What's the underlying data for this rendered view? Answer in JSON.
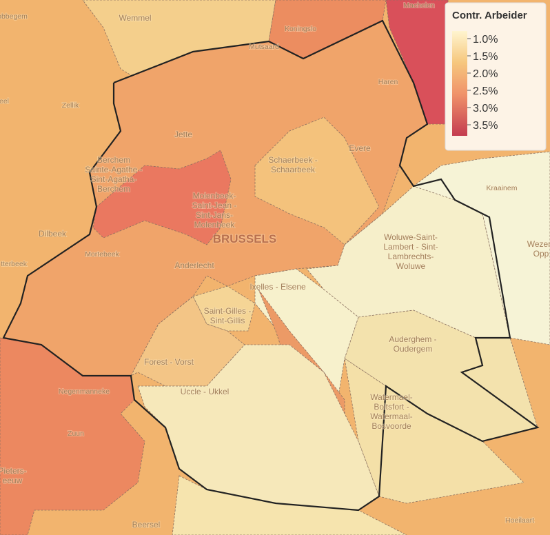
{
  "legend": {
    "title": "Contr. Arbeider",
    "ticks": [
      {
        "value": 1.0,
        "label": "1.0%"
      },
      {
        "value": 1.5,
        "label": "1.5%"
      },
      {
        "value": 2.0,
        "label": "2.0%"
      },
      {
        "value": 2.5,
        "label": "2.5%"
      },
      {
        "value": 3.0,
        "label": "3.0%"
      },
      {
        "value": 3.5,
        "label": "3.5%"
      }
    ]
  },
  "places": [
    {
      "lines": [
        "Machelen"
      ]
    },
    {
      "lines": [
        "Wemmel"
      ]
    },
    {
      "lines": [
        "obbegem"
      ]
    },
    {
      "lines": [
        "Koningslo"
      ]
    },
    {
      "lines": [
        "Mutsaard"
      ]
    },
    {
      "lines": [
        "Haren"
      ]
    },
    {
      "lines": [
        "eel"
      ]
    },
    {
      "lines": [
        "Zellik"
      ]
    },
    {
      "lines": [
        "Jette"
      ]
    },
    {
      "lines": [
        "Berchem",
        "Sainte-Agathe -",
        "Sint-Agatha-",
        "Berchem"
      ]
    },
    {
      "lines": [
        "Schaerbeek -",
        "Schaarbeek"
      ]
    },
    {
      "lines": [
        "Evere"
      ]
    },
    {
      "lines": [
        "Kraainem"
      ]
    },
    {
      "lines": [
        "Molenbeek-",
        "Saint-Jean -",
        "Sint-Jans-",
        "Molenbeek"
      ]
    },
    {
      "lines": [
        "BRUSSELS"
      ]
    },
    {
      "lines": [
        "Dilbeek"
      ]
    },
    {
      "lines": [
        "Woluwe-Saint-",
        "Lambert - Sint-",
        "Lambrechts-",
        "Woluwe"
      ]
    },
    {
      "lines": [
        "Wezem",
        "Opp"
      ]
    },
    {
      "lines": [
        "Mortebeek"
      ]
    },
    {
      "lines": [
        "Anderlecht"
      ]
    },
    {
      "lines": [
        "Ixelles - Elsene"
      ]
    },
    {
      "lines": [
        "tterbeek"
      ]
    },
    {
      "lines": [
        "Saint-Gilles -",
        "Sint-Gillis"
      ]
    },
    {
      "lines": [
        "Auderghem -",
        "Oudergem"
      ]
    },
    {
      "lines": [
        "Forest - Vorst"
      ]
    },
    {
      "lines": [
        "Negenmanneke"
      ]
    },
    {
      "lines": [
        "Uccle - Ukkel"
      ]
    },
    {
      "lines": [
        "Watermael-",
        "Boitsfort -",
        "Watermaal-",
        "Bosvoorde"
      ]
    },
    {
      "lines": [
        "Zuun"
      ]
    },
    {
      "lines": [
        "Pieters-",
        "eeuw"
      ]
    },
    {
      "lines": [
        "Beersel"
      ]
    },
    {
      "lines": [
        "Hoeilaart"
      ]
    },
    {
      "lines": [
        "Zaventem"
      ]
    }
  ]
}
